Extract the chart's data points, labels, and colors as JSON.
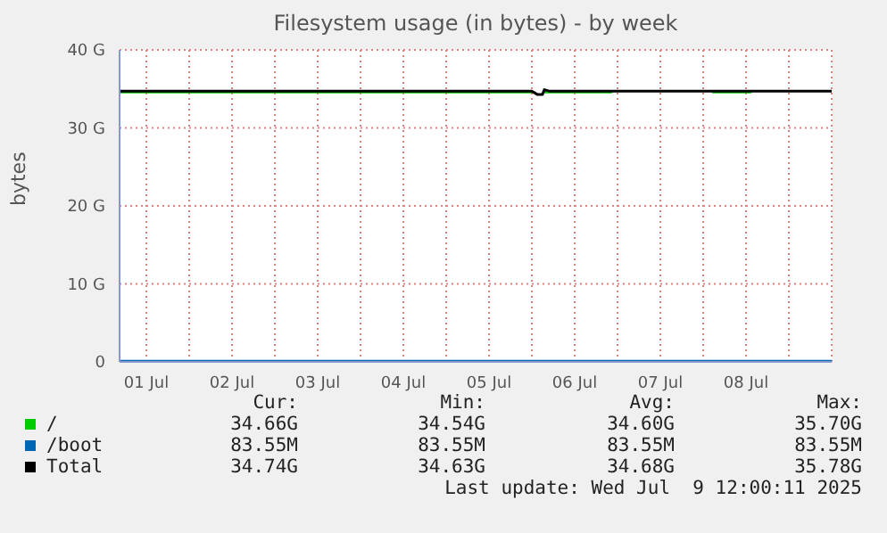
{
  "chart_data": {
    "type": "line",
    "title": "Filesystem usage (in bytes) - by week",
    "ylabel": "bytes",
    "x": [
      "2025-07-01T04:30",
      "2025-07-06T00:00",
      "2025-07-06T01:30",
      "2025-07-06T03:00",
      "2025-07-06T03:30",
      "2025-07-06T05:00",
      "2025-07-06T22:30",
      "2025-07-06T23:00",
      "2025-07-08T02:00",
      "2025-07-08T02:30",
      "2025-07-08T13:30",
      "2025-07-08T14:00",
      "2025-07-09T12:00"
    ],
    "series": [
      {
        "name": "/",
        "color": "#00cc00",
        "values": [
          34.6,
          34.6,
          null,
          null,
          34.6,
          34.6,
          34.6,
          null,
          null,
          34.6,
          34.6,
          null,
          null
        ]
      },
      {
        "name": "/boot",
        "color": "#0066b3",
        "values": [
          0.1,
          0.1,
          0.1,
          0.1,
          0.1,
          0.1,
          0.1,
          0.1,
          0.1,
          0.1,
          0.1,
          0.1,
          0.1
        ]
      },
      {
        "name": "Total",
        "color": "#000000",
        "values": [
          34.7,
          34.7,
          34.3,
          34.3,
          34.9,
          34.7,
          34.7,
          34.7,
          34.7,
          34.7,
          34.7,
          34.7,
          34.7
        ]
      }
    ],
    "xlim": [
      "2025-07-01T04:30",
      "2025-07-09T12:00"
    ],
    "xticks": [
      {
        "value": "2025-07-01T12:00",
        "label": "01 Jul"
      },
      {
        "value": "2025-07-02T00:00",
        "label": null
      },
      {
        "value": "2025-07-02T12:00",
        "label": "02 Jul"
      },
      {
        "value": "2025-07-03T00:00",
        "label": null
      },
      {
        "value": "2025-07-03T12:00",
        "label": "03 Jul"
      },
      {
        "value": "2025-07-04T00:00",
        "label": null
      },
      {
        "value": "2025-07-04T12:00",
        "label": "04 Jul"
      },
      {
        "value": "2025-07-05T00:00",
        "label": null
      },
      {
        "value": "2025-07-05T12:00",
        "label": "05 Jul"
      },
      {
        "value": "2025-07-06T00:00",
        "label": null
      },
      {
        "value": "2025-07-06T12:00",
        "label": "06 Jul"
      },
      {
        "value": "2025-07-07T00:00",
        "label": null
      },
      {
        "value": "2025-07-07T12:00",
        "label": "07 Jul"
      },
      {
        "value": "2025-07-08T00:00",
        "label": null
      },
      {
        "value": "2025-07-08T12:00",
        "label": "08 Jul"
      },
      {
        "value": "2025-07-09T00:00",
        "label": null
      }
    ],
    "ylim": [
      0,
      40
    ],
    "yticks": [
      0,
      {
        "value": 10,
        "label": "10 G"
      },
      {
        "value": 20,
        "label": "20 G"
      },
      {
        "value": 30,
        "label": "30 G"
      },
      {
        "value": 40,
        "label": "40 G"
      }
    ],
    "grid": true,
    "legend": "bottom",
    "marker": "none",
    "line_style": "solid",
    "annotations": [
      "Cur:",
      "Min:",
      "Avg:",
      "Max:",
      "34.66G",
      "34.54G",
      "34.60G",
      "35.70G",
      "83.55M",
      "83.55M",
      "83.55M",
      "83.55M",
      "34.74G",
      "34.63G",
      "34.68G",
      "35.78G",
      "Last update: Wed Jul  9 12:00:11 2025"
    ]
  }
}
